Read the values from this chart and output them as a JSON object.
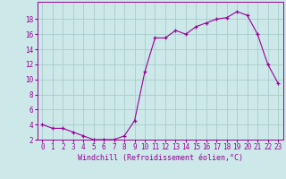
{
  "hours": [
    0,
    1,
    2,
    3,
    4,
    5,
    6,
    7,
    8,
    9,
    10,
    11,
    12,
    13,
    14,
    15,
    16,
    17,
    18,
    19,
    20,
    21,
    22,
    23
  ],
  "values": [
    4.0,
    3.5,
    3.5,
    3.0,
    2.5,
    2.0,
    2.0,
    2.0,
    2.5,
    4.5,
    11.0,
    15.5,
    15.5,
    16.5,
    16.0,
    17.0,
    17.5,
    18.0,
    18.2,
    19.0,
    18.5,
    16.0,
    12.0,
    9.5
  ],
  "xlabel": "Windchill (Refroidissement éolien,°C)",
  "ylim_min": 2,
  "ylim_max": 20,
  "xlim_min": -0.5,
  "xlim_max": 23.5,
  "yticks": [
    2,
    4,
    6,
    8,
    10,
    12,
    14,
    16,
    18
  ],
  "xticks": [
    0,
    1,
    2,
    3,
    4,
    5,
    6,
    7,
    8,
    9,
    10,
    11,
    12,
    13,
    14,
    15,
    16,
    17,
    18,
    19,
    20,
    21,
    22,
    23
  ],
  "line_color": "#990099",
  "marker": "+",
  "bg_color": "#cce8e8",
  "grid_color": "#aacccc",
  "font_color": "#990099",
  "tick_fontsize": 5.5,
  "xlabel_fontsize": 6.0
}
